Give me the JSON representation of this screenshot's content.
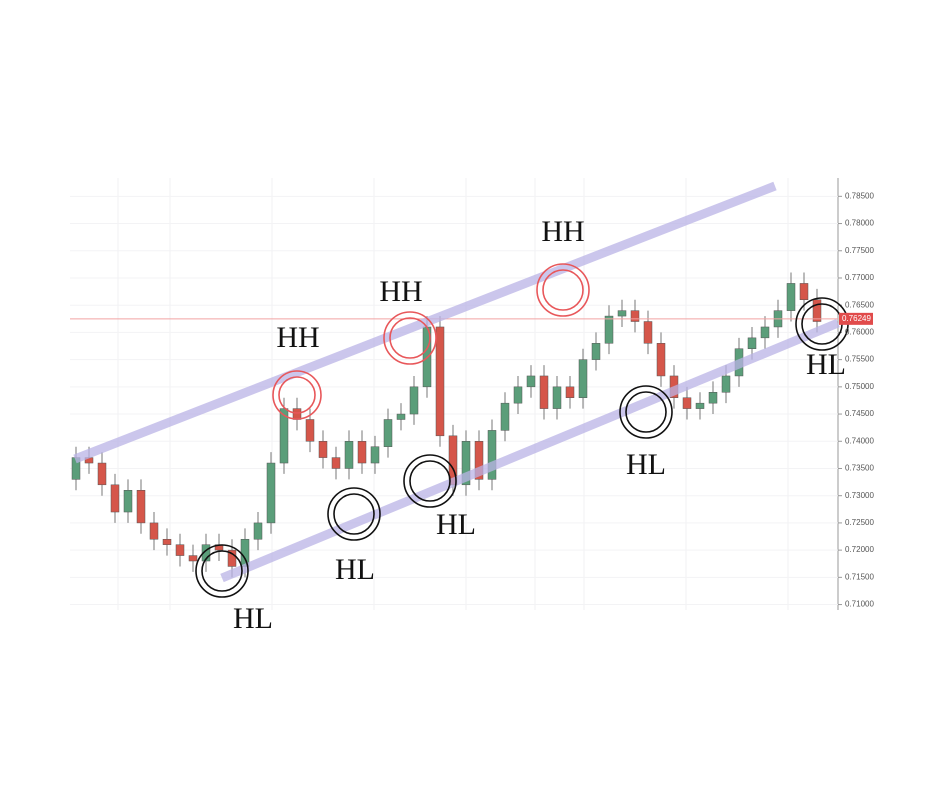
{
  "chart_data": {
    "type": "candlestick",
    "open": [
      0.733,
      0.737,
      0.736,
      0.732,
      0.727,
      0.731,
      0.725,
      0.722,
      0.721,
      0.719,
      0.718,
      0.721,
      0.72,
      0.717,
      0.722,
      0.725,
      0.736,
      0.746,
      0.744,
      0.74,
      0.737,
      0.735,
      0.74,
      0.736,
      0.739,
      0.744,
      0.745,
      0.75,
      0.761,
      0.741,
      0.732,
      0.74,
      0.733,
      0.742,
      0.747,
      0.75,
      0.752,
      0.746,
      0.75,
      0.748,
      0.755,
      0.758,
      0.763,
      0.764,
      0.762,
      0.758,
      0.752,
      0.748,
      0.746,
      0.747,
      0.749,
      0.752,
      0.757,
      0.759,
      0.761,
      0.764,
      0.769,
      0.766
    ],
    "high": [
      0.739,
      0.739,
      0.738,
      0.734,
      0.733,
      0.733,
      0.727,
      0.724,
      0.723,
      0.721,
      0.723,
      0.723,
      0.722,
      0.724,
      0.727,
      0.738,
      0.748,
      0.748,
      0.746,
      0.742,
      0.739,
      0.742,
      0.742,
      0.741,
      0.746,
      0.747,
      0.752,
      0.763,
      0.763,
      0.743,
      0.742,
      0.742,
      0.744,
      0.749,
      0.752,
      0.754,
      0.754,
      0.752,
      0.752,
      0.757,
      0.76,
      0.765,
      0.766,
      0.766,
      0.764,
      0.76,
      0.754,
      0.75,
      0.749,
      0.751,
      0.754,
      0.759,
      0.761,
      0.763,
      0.766,
      0.771,
      0.771,
      0.768
    ],
    "low": [
      0.731,
      0.734,
      0.73,
      0.725,
      0.725,
      0.723,
      0.72,
      0.719,
      0.717,
      0.716,
      0.716,
      0.718,
      0.715,
      0.715,
      0.72,
      0.723,
      0.734,
      0.742,
      0.738,
      0.735,
      0.733,
      0.733,
      0.734,
      0.734,
      0.737,
      0.742,
      0.743,
      0.748,
      0.739,
      0.73,
      0.73,
      0.731,
      0.731,
      0.74,
      0.745,
      0.748,
      0.744,
      0.744,
      0.746,
      0.746,
      0.753,
      0.756,
      0.761,
      0.76,
      0.756,
      0.75,
      0.746,
      0.744,
      0.744,
      0.745,
      0.747,
      0.75,
      0.755,
      0.757,
      0.759,
      0.762,
      0.764,
      0.76
    ],
    "close": [
      0.737,
      0.736,
      0.732,
      0.727,
      0.731,
      0.725,
      0.722,
      0.721,
      0.719,
      0.718,
      0.721,
      0.72,
      0.717,
      0.722,
      0.725,
      0.736,
      0.746,
      0.744,
      0.74,
      0.737,
      0.735,
      0.74,
      0.736,
      0.739,
      0.744,
      0.745,
      0.75,
      0.761,
      0.741,
      0.732,
      0.74,
      0.733,
      0.742,
      0.747,
      0.75,
      0.752,
      0.746,
      0.75,
      0.748,
      0.755,
      0.758,
      0.763,
      0.764,
      0.762,
      0.758,
      0.752,
      0.748,
      0.746,
      0.747,
      0.749,
      0.752,
      0.757,
      0.759,
      0.761,
      0.764,
      0.769,
      0.766,
      0.762
    ],
    "up_color": "#5b9e7a",
    "down_color": "#d5564a",
    "ylim": [
      0.709,
      0.788
    ],
    "yticks": [
      {
        "value": 0.71,
        "label": "0.71000"
      },
      {
        "value": 0.715,
        "label": "0.71500"
      },
      {
        "value": 0.72,
        "label": "0.72000"
      },
      {
        "value": 0.725,
        "label": "0.72500"
      },
      {
        "value": 0.73,
        "label": "0.73000"
      },
      {
        "value": 0.735,
        "label": "0.73500"
      },
      {
        "value": 0.74,
        "label": "0.74000"
      },
      {
        "value": 0.745,
        "label": "0.74500"
      },
      {
        "value": 0.75,
        "label": "0.75000"
      },
      {
        "value": 0.755,
        "label": "0.75500"
      },
      {
        "value": 0.76,
        "label": "0.76000"
      },
      {
        "value": 0.765,
        "label": "0.76500"
      },
      {
        "value": 0.77,
        "label": "0.77000"
      },
      {
        "value": 0.775,
        "label": "0.77500"
      },
      {
        "value": 0.78,
        "label": "0.78000"
      },
      {
        "value": 0.785,
        "label": "0.78500"
      }
    ],
    "last_price": {
      "value": 0.76249,
      "label": "0.76249"
    },
    "annotations": [
      "HH",
      "HH",
      "HH",
      "HL",
      "HL",
      "HL",
      "HL",
      "HL"
    ]
  }
}
